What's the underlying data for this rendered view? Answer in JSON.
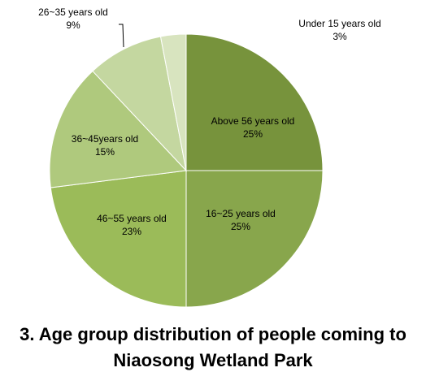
{
  "chart_data": {
    "type": "pie",
    "title": "3. Age group distribution of people coming to Niaosong Wetland Park",
    "categories": [
      "Above 56 years old",
      "16~25  years old",
      "46~55  years old",
      "36~45years old",
      "26~35  years old",
      "Under 15 years old"
    ],
    "values": [
      25,
      25,
      23,
      15,
      9,
      3
    ],
    "value_labels": [
      "25%",
      "25%",
      "23%",
      "15%",
      "9%",
      "3%"
    ],
    "colors": [
      "#77933c",
      "#88a64c",
      "#9bbb59",
      "#afc97d",
      "#c4d7a0",
      "#d8e4bf"
    ]
  }
}
